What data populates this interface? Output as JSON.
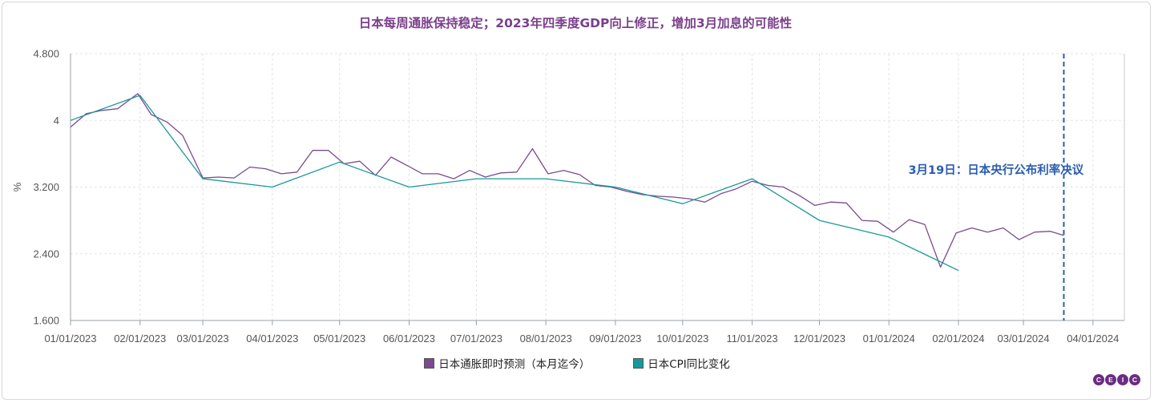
{
  "title": "日本每周通胀保持稳定；2023年四季度GDP向上修正，增加3月加息的可能性",
  "brand": {
    "logo_letters": [
      "C",
      "E",
      "I",
      "C"
    ],
    "color": "#6b2d82"
  },
  "chart_data": {
    "type": "line",
    "title": "日本每周通胀保持稳定；2023年四季度GDP向上修正，增加3月加息的可能性",
    "ylabel": "%",
    "ylim": [
      1.6,
      4.8
    ],
    "yticks": [
      "1.600",
      "2.400",
      "3.200",
      "4",
      "4.800"
    ],
    "ytick_values": [
      1.6,
      2.4,
      3.2,
      4.0,
      4.8
    ],
    "xlim": [
      "2023-01-01",
      "2024-04-15"
    ],
    "xticks": [
      "01/01/2023",
      "02/01/2023",
      "03/01/2023",
      "04/01/2023",
      "05/01/2023",
      "06/01/2023",
      "07/01/2023",
      "08/01/2023",
      "09/01/2023",
      "10/01/2023",
      "11/01/2023",
      "12/01/2023",
      "01/01/2024",
      "02/01/2024",
      "03/01/2024",
      "04/01/2024"
    ],
    "xtick_dates": [
      "2023-01-01",
      "2023-02-01",
      "2023-03-01",
      "2023-04-01",
      "2023-05-01",
      "2023-06-01",
      "2023-07-01",
      "2023-08-01",
      "2023-09-01",
      "2023-10-01",
      "2023-11-01",
      "2023-12-01",
      "2024-01-01",
      "2024-02-01",
      "2024-03-01",
      "2024-04-01"
    ],
    "grid": true,
    "legend_position": "bottom",
    "series": [
      {
        "name": "日本通胀即时预测（本月迄今）",
        "color": "#7b4a91",
        "points": [
          [
            "2023-01-01",
            3.92
          ],
          [
            "2023-01-08",
            4.08
          ],
          [
            "2023-01-15",
            4.12
          ],
          [
            "2023-01-22",
            4.14
          ],
          [
            "2023-01-31",
            4.32
          ],
          [
            "2023-02-06",
            4.07
          ],
          [
            "2023-02-13",
            3.98
          ],
          [
            "2023-02-20",
            3.82
          ],
          [
            "2023-03-01",
            3.31
          ],
          [
            "2023-03-08",
            3.32
          ],
          [
            "2023-03-15",
            3.31
          ],
          [
            "2023-03-22",
            3.44
          ],
          [
            "2023-03-29",
            3.42
          ],
          [
            "2023-04-05",
            3.36
          ],
          [
            "2023-04-12",
            3.38
          ],
          [
            "2023-04-19",
            3.64
          ],
          [
            "2023-04-26",
            3.64
          ],
          [
            "2023-05-03",
            3.48
          ],
          [
            "2023-05-10",
            3.51
          ],
          [
            "2023-05-17",
            3.34
          ],
          [
            "2023-05-24",
            3.56
          ],
          [
            "2023-05-31",
            3.46
          ],
          [
            "2023-06-07",
            3.36
          ],
          [
            "2023-06-14",
            3.36
          ],
          [
            "2023-06-21",
            3.3
          ],
          [
            "2023-06-28",
            3.4
          ],
          [
            "2023-07-05",
            3.32
          ],
          [
            "2023-07-12",
            3.37
          ],
          [
            "2023-07-19",
            3.38
          ],
          [
            "2023-07-26",
            3.66
          ],
          [
            "2023-08-02",
            3.36
          ],
          [
            "2023-08-09",
            3.4
          ],
          [
            "2023-08-16",
            3.35
          ],
          [
            "2023-08-23",
            3.22
          ],
          [
            "2023-08-30",
            3.2
          ],
          [
            "2023-09-06",
            3.15
          ],
          [
            "2023-09-13",
            3.11
          ],
          [
            "2023-09-20",
            3.09
          ],
          [
            "2023-09-27",
            3.08
          ],
          [
            "2023-10-04",
            3.06
          ],
          [
            "2023-10-11",
            3.02
          ],
          [
            "2023-10-18",
            3.12
          ],
          [
            "2023-10-25",
            3.18
          ],
          [
            "2023-11-01",
            3.27
          ],
          [
            "2023-11-08",
            3.22
          ],
          [
            "2023-11-15",
            3.2
          ],
          [
            "2023-11-22",
            3.1
          ],
          [
            "2023-11-29",
            2.98
          ],
          [
            "2023-12-06",
            3.02
          ],
          [
            "2023-12-13",
            3.01
          ],
          [
            "2023-12-20",
            2.8
          ],
          [
            "2023-12-27",
            2.79
          ],
          [
            "2024-01-03",
            2.66
          ],
          [
            "2024-01-10",
            2.81
          ],
          [
            "2024-01-17",
            2.75
          ],
          [
            "2024-01-24",
            2.24
          ],
          [
            "2024-01-31",
            2.65
          ],
          [
            "2024-02-07",
            2.71
          ],
          [
            "2024-02-14",
            2.66
          ],
          [
            "2024-02-21",
            2.71
          ],
          [
            "2024-02-28",
            2.57
          ],
          [
            "2024-03-06",
            2.66
          ],
          [
            "2024-03-13",
            2.67
          ],
          [
            "2024-03-19",
            2.62
          ]
        ]
      },
      {
        "name": "日本CPI同比变化",
        "color": "#17999a",
        "points": [
          [
            "2023-01-01",
            4.0
          ],
          [
            "2023-02-01",
            4.3
          ],
          [
            "2023-03-01",
            3.3
          ],
          [
            "2023-04-01",
            3.2
          ],
          [
            "2023-05-01",
            3.5
          ],
          [
            "2023-06-01",
            3.2
          ],
          [
            "2023-07-01",
            3.3
          ],
          [
            "2023-08-01",
            3.3
          ],
          [
            "2023-09-01",
            3.2
          ],
          [
            "2023-10-01",
            3.0
          ],
          [
            "2023-11-01",
            3.3
          ],
          [
            "2023-12-01",
            2.8
          ],
          [
            "2024-01-01",
            2.6
          ],
          [
            "2024-02-01",
            2.2
          ]
        ]
      }
    ],
    "annotations": [
      {
        "type": "vline",
        "date": "2024-03-19",
        "text": "3月19日：日本央行公布利率决议",
        "color": "#2a5db0"
      }
    ]
  }
}
